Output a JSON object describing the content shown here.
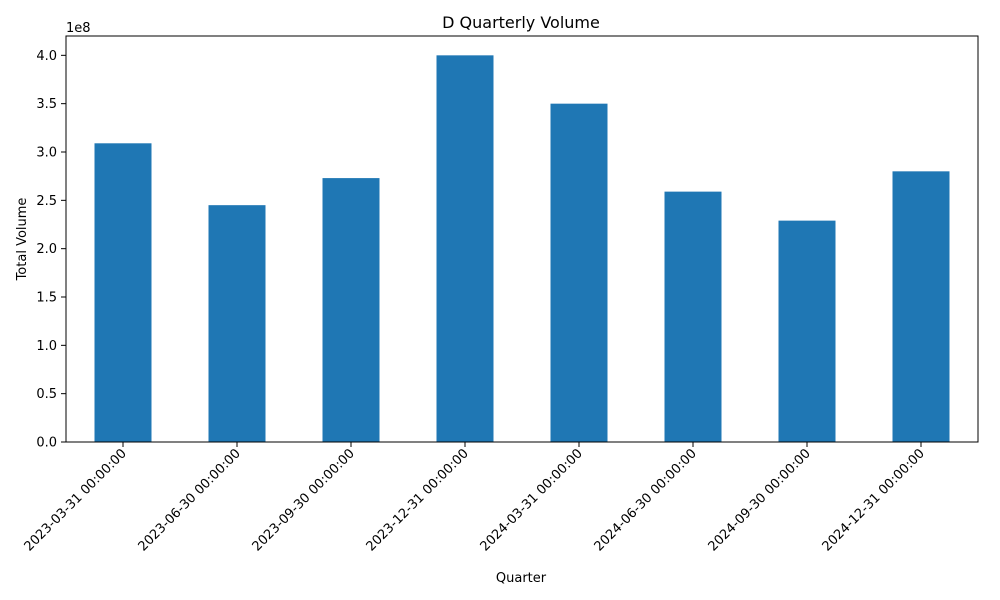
{
  "chart_data": {
    "type": "bar",
    "title": "D Quarterly Volume",
    "xlabel": "Quarter",
    "ylabel": "Total Volume",
    "y_scale_label": "1e8",
    "ylim": [
      0,
      4.2
    ],
    "y_ticks": [
      0.0,
      0.5,
      1.0,
      1.5,
      2.0,
      2.5,
      3.0,
      3.5,
      4.0
    ],
    "y_tick_labels": [
      "0.0",
      "0.5",
      "1.0",
      "1.5",
      "2.0",
      "2.5",
      "3.0",
      "3.5",
      "4.0"
    ],
    "categories": [
      "2023-03-31 00:00:00",
      "2023-06-30 00:00:00",
      "2023-09-30 00:00:00",
      "2023-12-31 00:00:00",
      "2024-03-31 00:00:00",
      "2024-06-30 00:00:00",
      "2024-09-30 00:00:00",
      "2024-12-31 00:00:00"
    ],
    "values": [
      3.09,
      2.45,
      2.73,
      4.0,
      3.5,
      2.59,
      2.29,
      2.8
    ],
    "bar_color": "#1f77b4",
    "grid": false,
    "legend": "none"
  }
}
